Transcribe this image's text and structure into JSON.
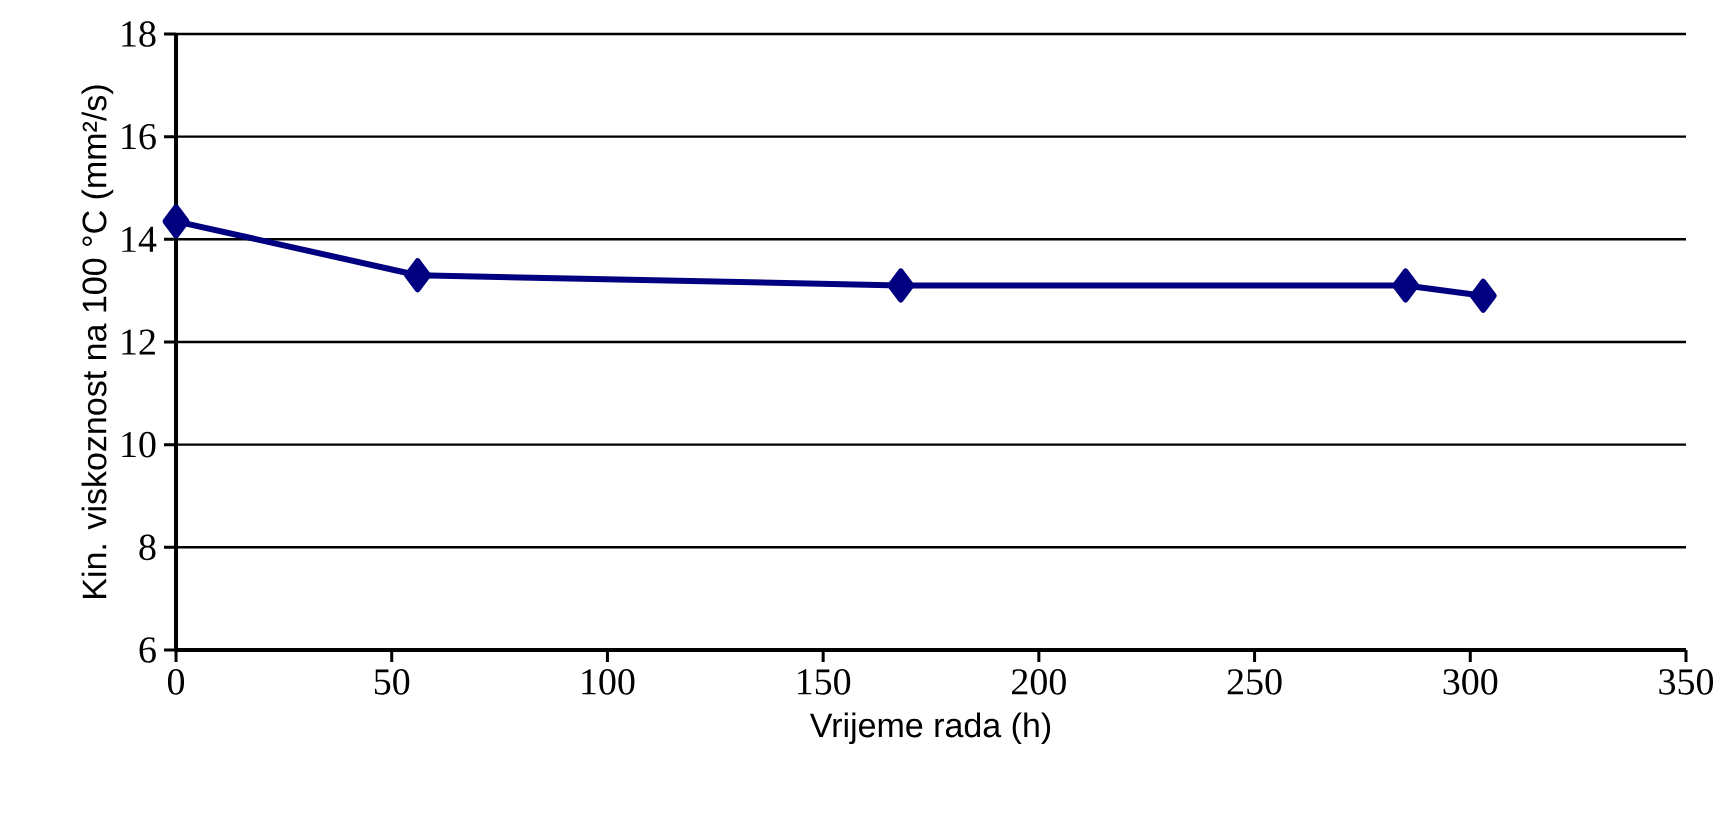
{
  "chart_data": {
    "type": "line",
    "xlabel": "Vrijeme rada (h)",
    "ylabel": "Kin. viskoznost na 100 °C (mm²/s)",
    "x": [
      0,
      56,
      168,
      285,
      303
    ],
    "series": [
      {
        "color": "#000080",
        "values": [
          14.35,
          13.3,
          13.1,
          13.1,
          12.9
        ]
      }
    ],
    "xlim": [
      0,
      350
    ],
    "xticks": [
      0,
      50,
      100,
      150,
      200,
      250,
      300,
      350
    ],
    "ylim": [
      6,
      18
    ],
    "yticks": [
      6,
      8,
      10,
      12,
      14,
      16,
      18
    ],
    "grid": "y",
    "marker": "diamond",
    "line_style": "solid"
  }
}
